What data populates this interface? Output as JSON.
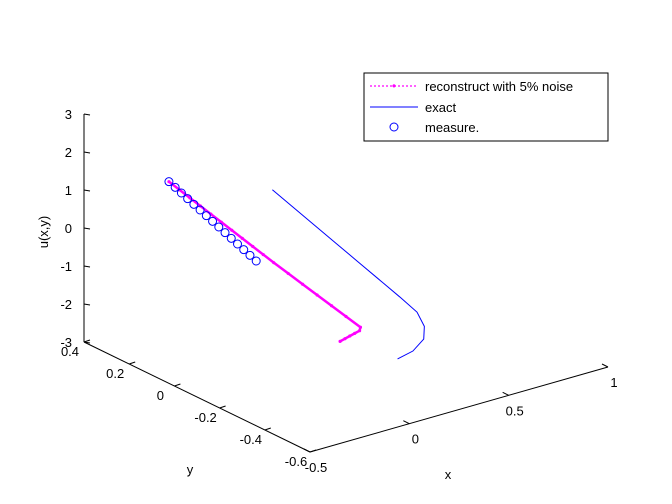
{
  "chart_data": {
    "type": "line",
    "projection": "3d",
    "xlabel": "x",
    "ylabel": "y",
    "zlabel": "u(x,y)",
    "xlim": [
      -0.5,
      1
    ],
    "ylim": [
      -0.6,
      0.4
    ],
    "zlim": [
      -3,
      3
    ],
    "x_ticks": [
      "-0.5",
      "0",
      "0.5",
      "1"
    ],
    "y_ticks": [
      "-0.6",
      "-0.4",
      "-0.2",
      "0",
      "0.2",
      "0.4"
    ],
    "z_ticks": [
      "-3",
      "-2",
      "-1",
      "0",
      "1",
      "2",
      "3"
    ],
    "grid": false,
    "legend_position": "top-right",
    "legend": [
      {
        "label": "reconstruct with 5% noise",
        "color": "#ff00ff",
        "style": "dotted-with-markers"
      },
      {
        "label": "exact",
        "color": "#0000ff",
        "style": "solid"
      },
      {
        "label": "measure.",
        "color": "#0000ff",
        "style": "circle-markers"
      }
    ],
    "series": [
      {
        "name": "reconstruct with 5% noise",
        "color": "#ff00ff",
        "note": "magenta line overlapping measurements then kinking downward",
        "points": [
          [
            -0.3,
            0.2,
            1.5
          ],
          [
            -0.27,
            0.18,
            1.3
          ],
          [
            -0.24,
            0.16,
            1.1
          ],
          [
            -0.21,
            0.14,
            0.9
          ],
          [
            -0.18,
            0.12,
            0.7
          ],
          [
            -0.15,
            0.1,
            0.5
          ],
          [
            -0.12,
            0.08,
            0.3
          ],
          [
            -0.09,
            0.06,
            0.1
          ],
          [
            -0.06,
            0.04,
            -0.1
          ],
          [
            -0.03,
            0.02,
            -0.3
          ],
          [
            0.0,
            0.0,
            -0.5
          ],
          [
            0.05,
            -0.02,
            -0.8
          ],
          [
            0.1,
            -0.04,
            -1.1
          ],
          [
            0.15,
            -0.06,
            -1.4
          ],
          [
            0.2,
            -0.08,
            -1.7
          ],
          [
            0.25,
            -0.1,
            -2.0
          ],
          [
            0.3,
            -0.12,
            -2.3
          ],
          [
            0.25,
            -0.16,
            -2.2
          ],
          [
            0.18,
            -0.2,
            -2.05
          ],
          [
            0.11,
            -0.24,
            -1.9
          ],
          [
            0.04,
            -0.28,
            -1.75
          ],
          [
            -0.03,
            -0.32,
            -1.6
          ]
        ]
      },
      {
        "name": "exact",
        "color": "#0000ff",
        "note": "blue curve",
        "points": [
          [
            0.05,
            0.05,
            1.2
          ],
          [
            0.1,
            0.0,
            0.8
          ],
          [
            0.15,
            -0.05,
            0.4
          ],
          [
            0.2,
            -0.1,
            0.0
          ],
          [
            0.25,
            -0.15,
            -0.4
          ],
          [
            0.3,
            -0.2,
            -0.8
          ],
          [
            0.35,
            -0.25,
            -1.2
          ],
          [
            0.38,
            -0.3,
            -1.5
          ],
          [
            0.36,
            -0.35,
            -1.7
          ],
          [
            0.3,
            -0.4,
            -1.8
          ],
          [
            0.2,
            -0.44,
            -1.85
          ],
          [
            0.1,
            -0.46,
            -1.85
          ]
        ]
      },
      {
        "name": "measure.",
        "color": "#0000ff",
        "note": "circle markers",
        "points": [
          [
            -0.3,
            0.2,
            1.5
          ],
          [
            -0.28,
            0.19,
            1.35
          ],
          [
            -0.26,
            0.18,
            1.2
          ],
          [
            -0.24,
            0.17,
            1.05
          ],
          [
            -0.22,
            0.16,
            0.9
          ],
          [
            -0.2,
            0.15,
            0.75
          ],
          [
            -0.18,
            0.14,
            0.6
          ],
          [
            -0.16,
            0.13,
            0.45
          ],
          [
            -0.14,
            0.12,
            0.3
          ],
          [
            -0.12,
            0.11,
            0.15
          ],
          [
            -0.1,
            0.1,
            0.0
          ],
          [
            -0.08,
            0.09,
            -0.15
          ],
          [
            -0.06,
            0.08,
            -0.3
          ],
          [
            -0.04,
            0.07,
            -0.45
          ],
          [
            -0.02,
            0.06,
            -0.6
          ]
        ]
      }
    ]
  }
}
